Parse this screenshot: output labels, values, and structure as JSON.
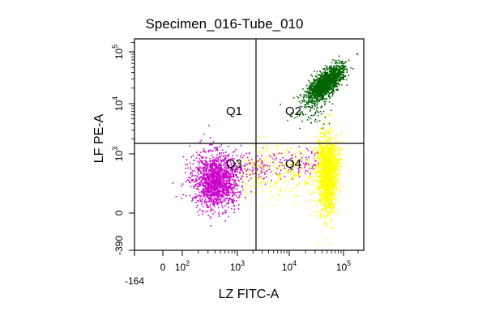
{
  "chart_data": {
    "type": "scatter",
    "title": "Specimen_016-Tube_010",
    "xlabel": "LZ FITC-A",
    "ylabel": "LF PE-A",
    "x_scale": "biexponential",
    "y_scale": "biexponential",
    "x_ticks": [
      {
        "label": "-164",
        "value": -164
      },
      {
        "label": "0",
        "value": 0
      },
      {
        "label": "10^2",
        "base": "10",
        "exp": "2",
        "value": 100
      },
      {
        "label": "10^3",
        "base": "10",
        "exp": "3",
        "value": 1000
      },
      {
        "label": "10^4",
        "base": "10",
        "exp": "4",
        "value": 10000
      },
      {
        "label": "10^5",
        "base": "10",
        "exp": "5",
        "value": 100000
      }
    ],
    "y_ticks": [
      {
        "label": "-390",
        "value": -390
      },
      {
        "label": "0",
        "value": 0
      },
      {
        "label": "10^3",
        "base": "10",
        "exp": "3",
        "value": 1000
      },
      {
        "label": "10^4",
        "base": "10",
        "exp": "4",
        "value": 10000
      },
      {
        "label": "10^5",
        "base": "10",
        "exp": "5",
        "value": 100000
      }
    ],
    "quadrant_gate": {
      "x": 2500,
      "y": 1500
    },
    "quadrants": [
      {
        "label": "Q1"
      },
      {
        "label": "Q2"
      },
      {
        "label": "Q3"
      },
      {
        "label": "Q4"
      }
    ],
    "grid": false,
    "legend": "none",
    "populations": [
      {
        "quadrant": "Q2",
        "color": "#006400",
        "center_x": 45000,
        "center_y": 25000
      },
      {
        "quadrant": "Q3",
        "color": "#cc00cc",
        "center_x": 400,
        "center_y": 120
      },
      {
        "quadrant": "Q4",
        "color": "#ffff00",
        "center_x": 50000,
        "center_y": 200
      }
    ],
    "colors": {
      "Q2": "#006400",
      "Q3": "#cc00cc",
      "Q4": "#ffff00",
      "axes": "#000000"
    }
  }
}
